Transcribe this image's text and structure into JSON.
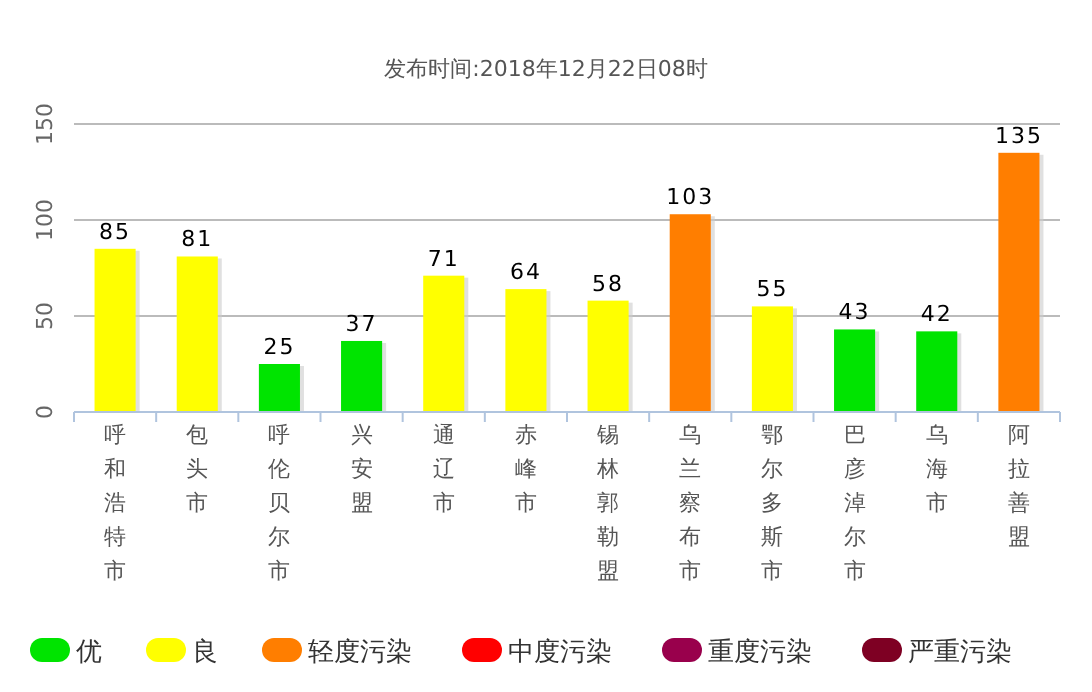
{
  "chart_data": {
    "type": "bar",
    "title": "发布时间:2018年12月22日08时",
    "categories": [
      "呼和浩特市",
      "包头市",
      "呼伦贝尔市",
      "兴安盟",
      "通辽市",
      "赤峰市",
      "锡林郭勒盟",
      "乌兰察布市",
      "鄂尔多斯市",
      "巴彦淖尔市",
      "乌海市",
      "阿拉善盟"
    ],
    "stacked": true,
    "series": [
      {
        "name": "优",
        "color": "#00e400",
        "values": [
          null,
          null,
          25,
          37,
          null,
          null,
          null,
          null,
          null,
          43,
          42,
          null
        ]
      },
      {
        "name": "良",
        "color": "#ffff00",
        "values": [
          85,
          81,
          null,
          null,
          71,
          64,
          58,
          null,
          55,
          null,
          null,
          null
        ]
      },
      {
        "name": "轻度污染",
        "color": "#ff7e00",
        "values": [
          null,
          null,
          null,
          null,
          null,
          null,
          null,
          103,
          null,
          null,
          null,
          135
        ]
      },
      {
        "name": "中度污染",
        "color": "#ff0000",
        "values": [
          null,
          null,
          null,
          null,
          null,
          null,
          null,
          null,
          null,
          null,
          null,
          null
        ]
      },
      {
        "name": "重度污染",
        "color": "#99004c",
        "values": [
          null,
          null,
          null,
          null,
          null,
          null,
          null,
          null,
          null,
          null,
          null,
          null
        ]
      },
      {
        "name": "严重污染",
        "color": "#7e0023",
        "values": [
          null,
          null,
          null,
          null,
          null,
          null,
          null,
          null,
          null,
          null,
          null,
          null
        ]
      }
    ],
    "ylim": [
      0,
      150
    ],
    "yticks": [
      0,
      50,
      100,
      150
    ],
    "grid": "y",
    "data_labels": true,
    "legend": "bottom"
  }
}
